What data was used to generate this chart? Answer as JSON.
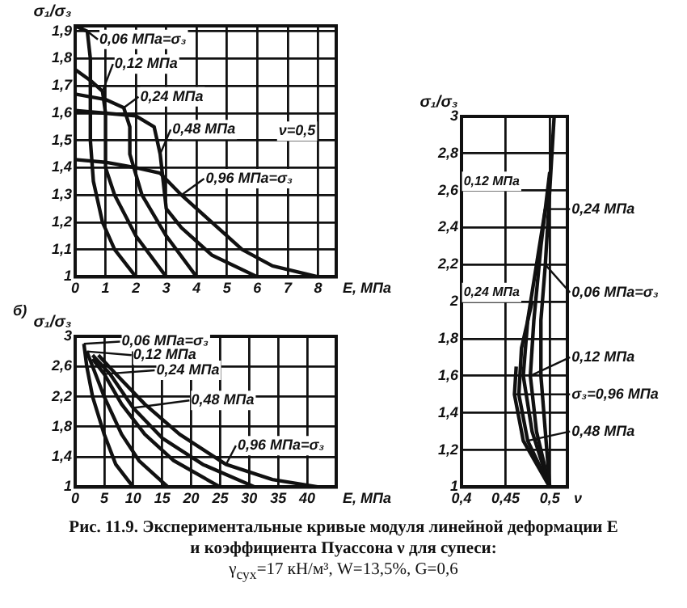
{
  "chart_data": [
    {
      "type": "line",
      "ylabel": "σ₁/σ₃",
      "xlabel": "E, МПа",
      "xlim": [
        0,
        8.6
      ],
      "xticks": [
        0,
        1,
        2,
        3,
        4,
        5,
        6,
        7,
        8
      ],
      "ylim": [
        1,
        1.92
      ],
      "yticks": [
        1,
        {
          "value": 1.1,
          "label": "1,1"
        },
        {
          "value": 1.2,
          "label": "1,2"
        },
        {
          "value": 1.3,
          "label": "1,3"
        },
        {
          "value": 1.4,
          "label": "1,4"
        },
        {
          "value": 1.5,
          "label": "1,5"
        },
        {
          "value": 1.6,
          "label": "1,6"
        },
        {
          "value": 1.7,
          "label": "1,7"
        },
        {
          "value": 1.8,
          "label": "1,8"
        },
        {
          "value": 1.9,
          "label": "1,9"
        }
      ],
      "grid": true,
      "legend": "top left",
      "marker": "none",
      "annotations": [
        "ν=0,5"
      ],
      "series": [
        {
          "name": "0,06 МПа=σ₃",
          "color": "#111111",
          "x": [
            0,
            0.4,
            0.5,
            0.5,
            0.6,
            0.9,
            1.3,
            2
          ],
          "values": [
            1.92,
            1.9,
            1.8,
            1.5,
            1.35,
            1.2,
            1.1,
            1.0
          ]
        },
        {
          "name": "0,12 МПа",
          "color": "#111111",
          "x": [
            0,
            0.5,
            0.9,
            1.0,
            1.0,
            1.3,
            2,
            3
          ],
          "values": [
            1.76,
            1.72,
            1.68,
            1.6,
            1.4,
            1.3,
            1.15,
            1.0
          ]
        },
        {
          "name": "0,24 МПа",
          "color": "#111111",
          "x": [
            0,
            1,
            1.6,
            1.8,
            1.8,
            2.2,
            3,
            4
          ],
          "values": [
            1.67,
            1.65,
            1.62,
            1.55,
            1.45,
            1.3,
            1.15,
            1.0
          ]
        },
        {
          "name": "0,48 МПа",
          "color": "#111111",
          "x": [
            0,
            1,
            2,
            2.6,
            2.8,
            2.9,
            3,
            3.5,
            4.5,
            6
          ],
          "values": [
            1.61,
            1.6,
            1.59,
            1.55,
            1.45,
            1.35,
            1.25,
            1.18,
            1.08,
            1.0
          ]
        },
        {
          "name": "0,96 МПа=σ₃",
          "color": "#111111",
          "x": [
            0,
            1,
            2,
            2.8,
            3.5,
            4.5,
            5.5,
            6.5,
            8
          ],
          "values": [
            1.43,
            1.42,
            1.4,
            1.38,
            1.3,
            1.2,
            1.1,
            1.04,
            1.0
          ]
        }
      ]
    },
    {
      "type": "line",
      "title": "б)",
      "ylabel": "σ₁/σ₃",
      "xlabel": "E, МПа",
      "xlim": [
        0,
        45
      ],
      "xticks": [
        0,
        5,
        10,
        15,
        20,
        25,
        30,
        35,
        40
      ],
      "ylim": [
        1,
        3
      ],
      "yticks": [
        1,
        {
          "value": 1.4,
          "label": "1,4"
        },
        {
          "value": 1.8,
          "label": "1,8"
        },
        {
          "value": 2.2,
          "label": "2,2"
        },
        {
          "value": 2.6,
          "label": "2,6"
        },
        3
      ],
      "grid": true,
      "legend": "top left",
      "marker": "none",
      "series": [
        {
          "name": "0,06 МПа=σ₃",
          "color": "#111111",
          "x": [
            1.5,
            2,
            3,
            5,
            7,
            10
          ],
          "values": [
            2.9,
            2.6,
            2.2,
            1.7,
            1.3,
            1.0
          ]
        },
        {
          "name": "0,12 МПа",
          "color": "#111111",
          "x": [
            2,
            3,
            5,
            8,
            11,
            16
          ],
          "values": [
            2.8,
            2.6,
            2.2,
            1.7,
            1.35,
            1.0
          ]
        },
        {
          "name": "0,24 МПа",
          "color": "#111111",
          "x": [
            3,
            5,
            8,
            12,
            17,
            25
          ],
          "values": [
            2.7,
            2.5,
            2.1,
            1.7,
            1.35,
            1.0
          ]
        },
        {
          "name": "0,48 МПа",
          "color": "#111111",
          "x": [
            3,
            6,
            10,
            15,
            22,
            31
          ],
          "values": [
            2.75,
            2.5,
            2.05,
            1.65,
            1.3,
            1.0
          ]
        },
        {
          "name": "0,96 МПа=σ₃",
          "color": "#111111",
          "x": [
            4,
            7,
            12,
            18,
            26,
            34,
            42
          ],
          "values": [
            2.75,
            2.5,
            2.1,
            1.7,
            1.3,
            1.1,
            1.0
          ]
        }
      ]
    },
    {
      "type": "line",
      "ylabel": "σ₁/σ₃",
      "xlabel": "ν",
      "xlim": [
        0.4,
        0.52
      ],
      "xticks": [
        {
          "value": 0.4,
          "label": "0,4"
        },
        {
          "value": 0.45,
          "label": "0,45"
        },
        {
          "value": 0.5,
          "label": "0,5"
        }
      ],
      "ylim": [
        1,
        3
      ],
      "yticks": [
        1,
        {
          "value": 1.2,
          "label": "1,2"
        },
        {
          "value": 1.4,
          "label": "1,4"
        },
        {
          "value": 1.6,
          "label": "1,6"
        },
        {
          "value": 1.8,
          "label": "1,8"
        },
        2,
        {
          "value": 2.2,
          "label": "2,2"
        },
        {
          "value": 2.4,
          "label": "2,4"
        },
        {
          "value": 2.6,
          "label": "2,6"
        },
        {
          "value": 2.8,
          "label": "2,8"
        },
        3
      ],
      "grid": true,
      "legend": "right",
      "marker": "none",
      "annotations": [
        "0,12 МПа",
        "0,24 МПа",
        "Рис. 11.9. Экспериментальные кривые модуля линейной деформации E",
        "и коэффициента Пуассона ν для супеси:",
        "γ$_{сух}$=17 кН/м³, W=13,5%, G=0,6"
      ],
      "series": [
        {
          "name": "0,06 МПа=σ₃",
          "color": "#111111",
          "x": [
            0.5,
            0.495,
            0.49,
            0.49,
            0.495,
            0.5,
            0.505
          ],
          "values": [
            1,
            1.3,
            1.6,
            1.9,
            2.2,
            2.6,
            3.0
          ]
        },
        {
          "name": "0,12 МПа",
          "color": "#111111",
          "x": [
            0.5,
            0.485,
            0.478,
            0.482,
            0.49,
            0.5
          ],
          "values": [
            1,
            1.3,
            1.6,
            1.9,
            2.3,
            2.7
          ]
        },
        {
          "name": "0,24 МПа",
          "color": "#111111",
          "x": [
            0.5,
            0.48,
            0.47,
            0.475,
            0.485,
            0.495
          ],
          "values": [
            1,
            1.3,
            1.6,
            1.9,
            2.2,
            2.5
          ]
        },
        {
          "name": "0,48 МПа",
          "color": "#111111",
          "x": [
            0.5,
            0.475,
            0.465,
            0.468,
            0.48
          ],
          "values": [
            1,
            1.25,
            1.5,
            1.75,
            2.0
          ]
        },
        {
          "name": "σ₃=0,96 МПа",
          "color": "#111111",
          "x": [
            0.5,
            0.47,
            0.46,
            0.462
          ],
          "values": [
            1,
            1.25,
            1.5,
            1.65
          ]
        }
      ]
    }
  ]
}
